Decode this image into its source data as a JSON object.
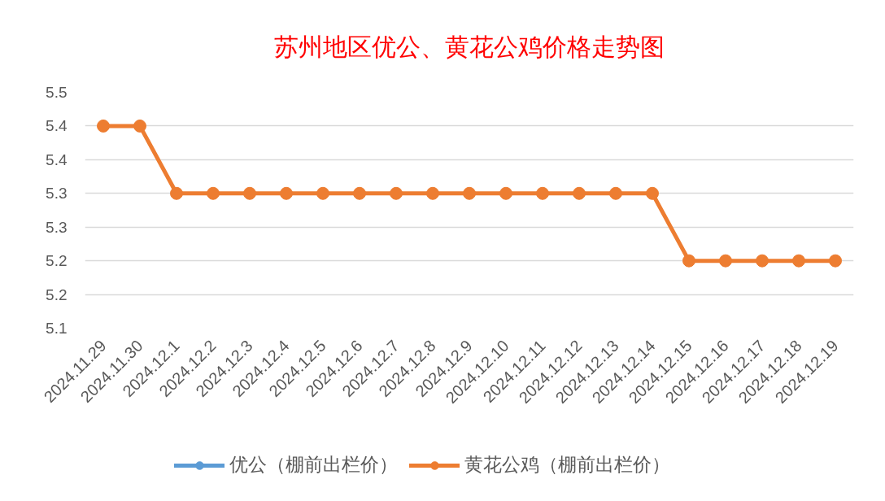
{
  "chart_data": {
    "type": "line",
    "title": "苏州地区优公、黄花公鸡价格走势图",
    "categories": [
      "2024.11.29",
      "2024.11.30",
      "2024.12.1",
      "2024.12.2",
      "2024.12.3",
      "2024.12.4",
      "2024.12.5",
      "2024.12.6",
      "2024.12.7",
      "2024.12.8",
      "2024.12.9",
      "2024.12.10",
      "2024.12.11",
      "2024.12.12",
      "2024.12.13",
      "2024.12.14",
      "2024.12.15",
      "2024.12.16",
      "2024.12.17",
      "2024.12.18",
      "2024.12.19"
    ],
    "series": [
      {
        "name": "优公（棚前出栏价）",
        "color": "#5b9bd5",
        "values": [
          null,
          null,
          null,
          null,
          null,
          null,
          null,
          null,
          null,
          null,
          null,
          null,
          null,
          null,
          null,
          null,
          null,
          null,
          null,
          null,
          null
        ]
      },
      {
        "name": "黄花公鸡（棚前出栏价）",
        "color": "#ed7d31",
        "values": [
          5.4,
          5.4,
          5.3,
          5.3,
          5.3,
          5.3,
          5.3,
          5.3,
          5.3,
          5.3,
          5.3,
          5.3,
          5.3,
          5.3,
          5.3,
          5.3,
          5.2,
          5.2,
          5.2,
          5.2,
          5.2
        ]
      }
    ],
    "ylim": [
      5.1,
      5.45
    ],
    "yticks": [
      5.1,
      {
        "value": 5.15,
        "label": "5.2"
      },
      5.2,
      {
        "value": 5.25,
        "label": "5.3"
      },
      5.3,
      {
        "value": 5.35,
        "label": "5.4"
      },
      5.4,
      {
        "value": 5.45,
        "label": "5.5"
      }
    ],
    "grid": "y",
    "legend": "bottom",
    "marker": "circle"
  }
}
